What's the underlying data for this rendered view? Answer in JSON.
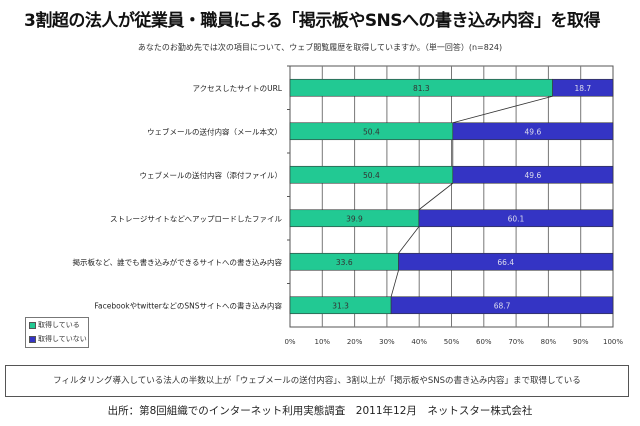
{
  "title": "3割超の法人が従業員・職員による「掲示板やSNSへの書き込み内容」を取得",
  "footnote": "フィルタリング導入している法人の半数以上が「ウェブメールの送付内容」、3割以上が「掲示板やSNSの書き込み内容」まで取得している",
  "source": "出所：第8回組織でのインターネット利用実態調査　2011年12月　ネットスター株式会社",
  "chart_data": {
    "type": "bar",
    "orientation": "horizontal-stacked-100",
    "title": "あなたのお勤め先では次の項目について、ウェブ閲覧履歴を取得していますか。（単一回答）(n=824)",
    "categories": [
      "アクセスしたサイトのURL",
      "ウェブメールの送付内容（メール本文）",
      "ウェブメールの送付内容（添付ファイル）",
      "ストレージサイトなどへアップロードしたファイル",
      "掲示板など、誰でも書き込みができるサイトへの書き込み内容",
      "FacebookやtwitterなどのSNSサイトへの書き込み内容"
    ],
    "series": [
      {
        "name": "取得している",
        "color": "#22c993",
        "values": [
          81.3,
          50.4,
          50.4,
          39.9,
          33.6,
          31.3
        ]
      },
      {
        "name": "取得していない",
        "color": "#3434c4",
        "values": [
          18.7,
          49.6,
          49.6,
          60.1,
          66.4,
          68.7
        ]
      }
    ],
    "xticks": [
      "0%",
      "10%",
      "20%",
      "30%",
      "40%",
      "50%",
      "60%",
      "70%",
      "80%",
      "90%",
      "100%"
    ],
    "xlim": [
      0,
      100
    ],
    "grid": true,
    "legend": "bottom-left"
  }
}
